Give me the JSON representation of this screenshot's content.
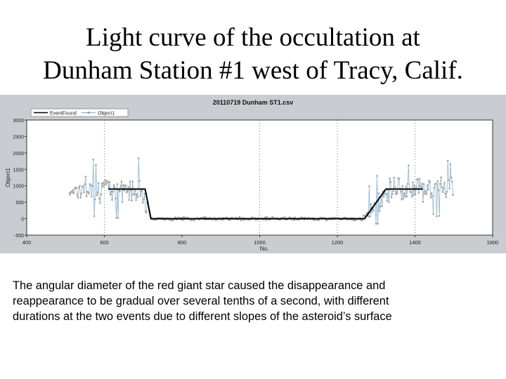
{
  "slide": {
    "title_line1": "Light curve of the occultation at",
    "title_line2": "Dunham Station #1 west of Tracy, Calif.",
    "caption_line1": "The angular diameter of the red giant star caused the disappearance and",
    "caption_line2": "reappearance to be gradual over several tenths of a second, with different",
    "caption_line3": "durations at the two events due to different slopes of the asteroid’s surface"
  },
  "colors": {
    "frame_bg": "#c9ccd1",
    "plot_bg": "#ffffff",
    "data_line": "#8fb3cf",
    "data_marker": "#a8a29a",
    "fit_line": "#000000"
  },
  "chart_data": {
    "type": "line",
    "title": "20110719 Dunham ST1.csv",
    "xlabel": "No.",
    "ylabel": "Object1",
    "xlim": [
      400,
      1600
    ],
    "ylim": [
      -500,
      3000
    ],
    "x_ticks": [
      "400",
      "600",
      "800",
      "1000",
      "1200",
      "1400",
      "1600"
    ],
    "y_ticks": [
      "-500",
      "0",
      "500",
      "1000",
      "1500",
      "2000",
      "2500",
      "3000"
    ],
    "x_tick_values": [
      400,
      600,
      800,
      1000,
      1200,
      1400,
      1600
    ],
    "y_tick_values": [
      -500,
      0,
      500,
      1000,
      1500,
      2000,
      2500,
      3000
    ],
    "vertical_gridlines_at": [
      600,
      1000,
      1200,
      1400
    ],
    "legend": [
      "EventFound",
      "Object1"
    ],
    "legend_position": "top-left",
    "series": [
      {
        "name": "Object1",
        "style": "line-with-markers",
        "x_range": [
          510,
          1500
        ],
        "baseline_levels": [
          {
            "x_from": 510,
            "x_to": 700,
            "level": 900
          },
          {
            "x_from": 700,
            "x_to": 720,
            "level_from": 900,
            "level_to": 0
          },
          {
            "x_from": 720,
            "x_to": 1265,
            "level": 0
          },
          {
            "x_from": 1265,
            "x_to": 1330,
            "level_from": 0,
            "level_to": 900
          },
          {
            "x_from": 1330,
            "x_to": 1500,
            "level": 900
          }
        ],
        "noise_amplitude_unoccluded": 550,
        "noise_amplitude_occluded": 70
      },
      {
        "name": "EventFound",
        "style": "line",
        "x": [
          610,
          705,
          720,
          1270,
          1325,
          1420
        ],
        "y": [
          900,
          900,
          0,
          0,
          900,
          900
        ]
      }
    ]
  }
}
